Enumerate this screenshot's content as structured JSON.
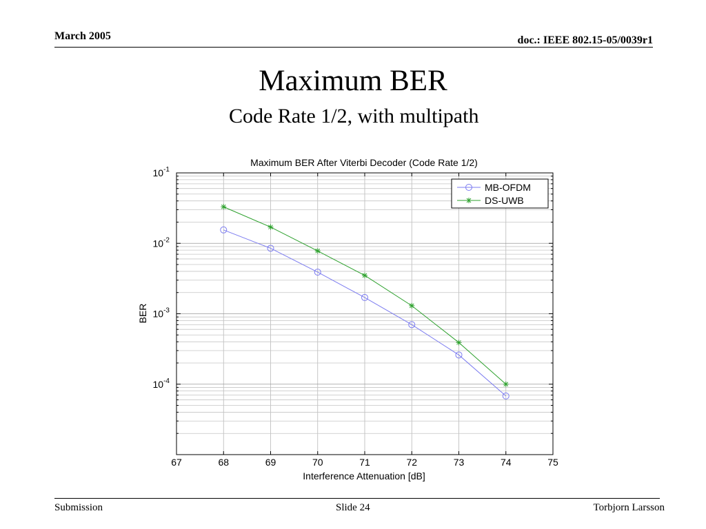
{
  "slide": {
    "header_left": "March 2005",
    "header_right": "doc.: IEEE 802.15-05/0039r1",
    "title": "Maximum BER",
    "subtitle": "Code Rate 1/2, with multipath",
    "footer_left": "Submission",
    "footer_center": "Slide 24",
    "footer_right": "Torbjorn Larsson"
  },
  "chart_data": {
    "type": "line",
    "title": "Maximum BER After Viterbi Decoder (Code Rate 1/2)",
    "xlabel": "Interference Attenuation [dB]",
    "ylabel": "BER",
    "xlim": [
      67,
      75
    ],
    "ylim": [
      1e-05,
      0.1
    ],
    "yscale": "log",
    "grid": true,
    "legend_position": "top-right",
    "x_ticks": [
      67,
      68,
      69,
      70,
      71,
      72,
      73,
      74,
      75
    ],
    "y_ticks": [
      {
        "value": 0.1,
        "base": "10",
        "exp": "-1"
      },
      {
        "value": 0.01,
        "base": "10",
        "exp": "-2"
      },
      {
        "value": 0.001,
        "base": "10",
        "exp": "-3"
      },
      {
        "value": 0.0001,
        "base": "10",
        "exp": "-4"
      }
    ],
    "x": [
      68,
      69,
      70,
      71,
      72,
      73,
      74
    ],
    "series": [
      {
        "name": "MB-OFDM",
        "color": "#7b7bf0",
        "marker": "circle",
        "values": [
          0.0155,
          0.0085,
          0.0039,
          0.0017,
          0.0007,
          0.00026,
          6.8e-05
        ]
      },
      {
        "name": "DS-UWB",
        "color": "#2ca02c",
        "marker": "star",
        "values": [
          0.033,
          0.017,
          0.0078,
          0.0035,
          0.0013,
          0.00039,
          0.0001
        ]
      }
    ]
  }
}
